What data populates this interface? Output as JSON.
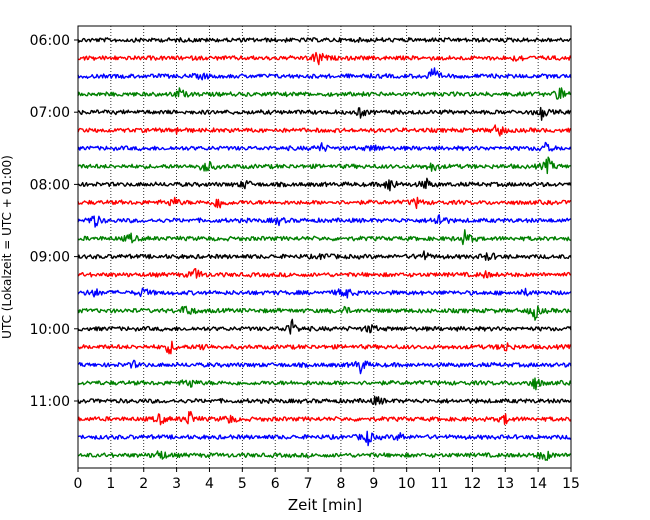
{
  "chart_data": {
    "type": "line",
    "title": "",
    "xlabel": "Zeit  [min]",
    "ylabel": "UTC (Lokalzeit = UTC + 01:00)",
    "xlim": [
      0,
      15
    ],
    "xticks": [
      0,
      1,
      2,
      3,
      4,
      5,
      6,
      7,
      8,
      9,
      10,
      11,
      12,
      13,
      14,
      15
    ],
    "ytick_labels": [
      "06:00",
      "07:00",
      "08:00",
      "09:00",
      "10:00",
      "11:00"
    ],
    "grid": "vertical dotted",
    "row_interval_min": 15,
    "start_time": "06:00",
    "colors": [
      "#000000",
      "#ff0000",
      "#0000ff",
      "#008000"
    ],
    "traces": [
      {
        "time": "06:00",
        "color": "#000000",
        "events": []
      },
      {
        "time": "06:15",
        "color": "#ff0000",
        "events": [
          {
            "t": 7.3,
            "a": 1.0
          },
          {
            "t": 13.4,
            "a": 0.4
          }
        ]
      },
      {
        "time": "06:30",
        "color": "#0000ff",
        "events": [
          {
            "t": 10.8,
            "a": 1.0
          },
          {
            "t": 3.8,
            "a": 0.3
          }
        ]
      },
      {
        "time": "06:45",
        "color": "#008000",
        "events": [
          {
            "t": 3.1,
            "a": 0.6
          },
          {
            "t": 14.7,
            "a": 1.0
          }
        ]
      },
      {
        "time": "07:00",
        "color": "#000000",
        "events": [
          {
            "t": 8.6,
            "a": 0.5
          },
          {
            "t": 14.1,
            "a": 0.7
          }
        ]
      },
      {
        "time": "07:15",
        "color": "#ff0000",
        "events": [
          {
            "t": 12.8,
            "a": 0.9
          },
          {
            "t": 3.0,
            "a": 0.3
          }
        ]
      },
      {
        "time": "07:30",
        "color": "#0000ff",
        "events": [
          {
            "t": 7.4,
            "a": 0.5
          },
          {
            "t": 9.0,
            "a": 0.4
          },
          {
            "t": 14.2,
            "a": 0.6
          }
        ]
      },
      {
        "time": "07:45",
        "color": "#008000",
        "events": [
          {
            "t": 3.9,
            "a": 0.9
          },
          {
            "t": 10.8,
            "a": 0.6
          },
          {
            "t": 14.3,
            "a": 0.9
          }
        ]
      },
      {
        "time": "08:00",
        "color": "#000000",
        "events": [
          {
            "t": 5.1,
            "a": 0.5
          },
          {
            "t": 9.5,
            "a": 0.9
          },
          {
            "t": 10.6,
            "a": 0.6
          }
        ]
      },
      {
        "time": "08:15",
        "color": "#ff0000",
        "events": [
          {
            "t": 2.9,
            "a": 0.6
          },
          {
            "t": 4.3,
            "a": 0.9
          },
          {
            "t": 10.3,
            "a": 0.5
          }
        ]
      },
      {
        "time": "08:30",
        "color": "#0000ff",
        "events": [
          {
            "t": 0.5,
            "a": 0.8
          },
          {
            "t": 6.1,
            "a": 0.4
          },
          {
            "t": 11.0,
            "a": 0.9
          }
        ]
      },
      {
        "time": "08:45",
        "color": "#008000",
        "events": [
          {
            "t": 1.6,
            "a": 0.5
          },
          {
            "t": 11.8,
            "a": 1.0
          }
        ]
      },
      {
        "time": "09:00",
        "color": "#000000",
        "events": [
          {
            "t": 7.5,
            "a": 0.4
          },
          {
            "t": 10.5,
            "a": 0.6
          },
          {
            "t": 12.5,
            "a": 0.5
          }
        ]
      },
      {
        "time": "09:15",
        "color": "#ff0000",
        "events": [
          {
            "t": 3.6,
            "a": 0.7
          },
          {
            "t": 12.4,
            "a": 0.3
          }
        ]
      },
      {
        "time": "09:30",
        "color": "#0000ff",
        "events": [
          {
            "t": 0.5,
            "a": 0.5
          },
          {
            "t": 2.0,
            "a": 0.5
          },
          {
            "t": 8.1,
            "a": 0.9
          },
          {
            "t": 13.6,
            "a": 0.3
          }
        ]
      },
      {
        "time": "09:45",
        "color": "#008000",
        "events": [
          {
            "t": 3.3,
            "a": 0.8
          },
          {
            "t": 8.1,
            "a": 0.4
          },
          {
            "t": 13.9,
            "a": 0.9
          }
        ]
      },
      {
        "time": "10:00",
        "color": "#000000",
        "events": [
          {
            "t": 6.5,
            "a": 1.0
          },
          {
            "t": 8.9,
            "a": 0.5
          }
        ]
      },
      {
        "time": "10:15",
        "color": "#ff0000",
        "events": [
          {
            "t": 2.8,
            "a": 0.8
          },
          {
            "t": 3.8,
            "a": 0.4
          },
          {
            "t": 13.0,
            "a": 0.6
          }
        ]
      },
      {
        "time": "10:30",
        "color": "#0000ff",
        "events": [
          {
            "t": 8.6,
            "a": 0.9
          },
          {
            "t": 1.7,
            "a": 0.3
          }
        ]
      },
      {
        "time": "10:45",
        "color": "#008000",
        "events": [
          {
            "t": 3.4,
            "a": 0.6
          },
          {
            "t": 13.9,
            "a": 0.8
          }
        ]
      },
      {
        "time": "11:00",
        "color": "#000000",
        "events": [
          {
            "t": 9.1,
            "a": 0.5
          }
        ]
      },
      {
        "time": "11:15",
        "color": "#ff0000",
        "events": [
          {
            "t": 2.5,
            "a": 0.6
          },
          {
            "t": 3.4,
            "a": 0.9
          },
          {
            "t": 4.6,
            "a": 0.5
          },
          {
            "t": 13.0,
            "a": 0.5
          }
        ]
      },
      {
        "time": "11:30",
        "color": "#0000ff",
        "events": [
          {
            "t": 8.8,
            "a": 0.9
          },
          {
            "t": 9.8,
            "a": 0.4
          }
        ]
      },
      {
        "time": "11:45",
        "color": "#008000",
        "events": [
          {
            "t": 2.5,
            "a": 0.7
          },
          {
            "t": 14.2,
            "a": 0.8
          }
        ]
      }
    ]
  }
}
